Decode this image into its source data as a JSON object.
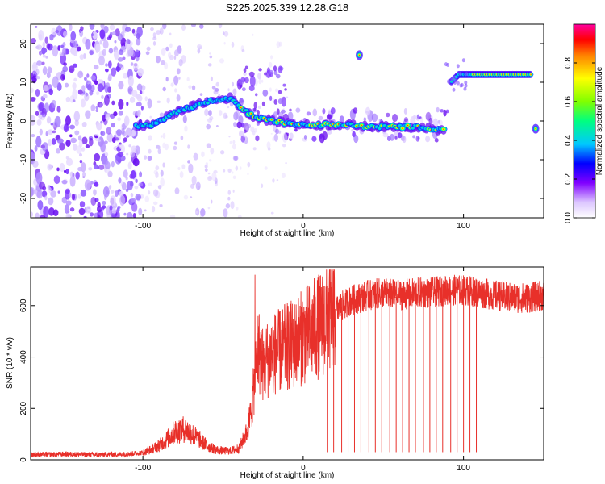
{
  "figure": {
    "title": "S225.2025.339.12.28.G18"
  },
  "chart_data": [
    {
      "type": "heatmap",
      "xlabel": "Height of straight line (km)",
      "ylabel": "Frequency (Hz)",
      "xlim": [
        -170,
        150
      ],
      "ylim": [
        -25,
        25
      ],
      "xticks": [
        -100,
        0,
        100
      ],
      "yticks": [
        -20,
        -10,
        0,
        10,
        20
      ],
      "colorbar": {
        "label": "Normalized spectral amplitude",
        "range": [
          0,
          1
        ],
        "ticks": [
          0.0,
          0.2,
          0.4,
          0.6,
          0.8
        ],
        "colors": [
          "#ffffff",
          "#dcc6ff",
          "#8000ff",
          "#0000ff",
          "#00c8ff",
          "#00ff80",
          "#80ff00",
          "#ffff00",
          "#ff8000",
          "#ff0000",
          "#ff00a0"
        ]
      },
      "ridge": [
        {
          "x": -105,
          "y": -1.5
        },
        {
          "x": -95,
          "y": -1
        },
        {
          "x": -85,
          "y": 1
        },
        {
          "x": -75,
          "y": 3
        },
        {
          "x": -60,
          "y": 5
        },
        {
          "x": -45,
          "y": 6
        },
        {
          "x": -38,
          "y": 3
        },
        {
          "x": -30,
          "y": 1
        },
        {
          "x": -20,
          "y": 0
        },
        {
          "x": -10,
          "y": -0.5
        },
        {
          "x": 0,
          "y": -1
        },
        {
          "x": 10,
          "y": -1
        },
        {
          "x": 20,
          "y": -1
        },
        {
          "x": 30,
          "y": -1
        },
        {
          "x": 40,
          "y": -1.5
        },
        {
          "x": 55,
          "y": -1.5
        },
        {
          "x": 70,
          "y": -1.5
        },
        {
          "x": 80,
          "y": -2
        },
        {
          "x": 88,
          "y": -2.5
        }
      ],
      "upper_band": [
        {
          "x": 92,
          "y": 10
        },
        {
          "x": 97,
          "y": 12
        },
        {
          "x": 110,
          "y": 12
        },
        {
          "x": 125,
          "y": 12
        },
        {
          "x": 142,
          "y": 12
        }
      ],
      "small_blobs": [
        {
          "x": 35,
          "y": 17
        },
        {
          "x": 145,
          "y": -2
        }
      ]
    },
    {
      "type": "line",
      "xlabel": "Height of straight line (km)",
      "ylabel": "SNR (10 * v/v)",
      "xlim": [
        -170,
        150
      ],
      "ylim": [
        0,
        750
      ],
      "xticks": [
        -100,
        0,
        100
      ],
      "yticks": [
        0,
        200,
        400,
        600
      ],
      "series": [
        {
          "color": "#e8302a",
          "x": [
            -170,
            -150,
            -130,
            -110,
            -100,
            -95,
            -90,
            -85,
            -80,
            -75,
            -70,
            -65,
            -60,
            -55,
            -50,
            -45,
            -40,
            -35,
            -32,
            -30,
            -28,
            -25,
            -20,
            -15,
            -10,
            -5,
            0,
            5,
            10,
            15,
            20,
            25,
            30,
            40,
            50,
            60,
            70,
            80,
            90,
            100,
            110,
            120,
            130,
            140,
            150
          ],
          "values": [
            20,
            22,
            20,
            22,
            28,
            40,
            55,
            80,
            110,
            120,
            105,
            80,
            55,
            40,
            35,
            35,
            45,
            110,
            200,
            330,
            430,
            370,
            410,
            420,
            440,
            450,
            480,
            500,
            520,
            550,
            580,
            600,
            620,
            640,
            650,
            640,
            650,
            650,
            660,
            660,
            650,
            640,
            630,
            630,
            640
          ]
        }
      ],
      "dropouts_x": [
        15,
        19,
        24,
        28,
        32,
        36,
        41,
        45,
        49,
        54,
        58,
        62,
        66,
        70,
        75,
        79,
        83,
        87,
        92,
        96,
        100,
        104,
        108
      ]
    }
  ]
}
